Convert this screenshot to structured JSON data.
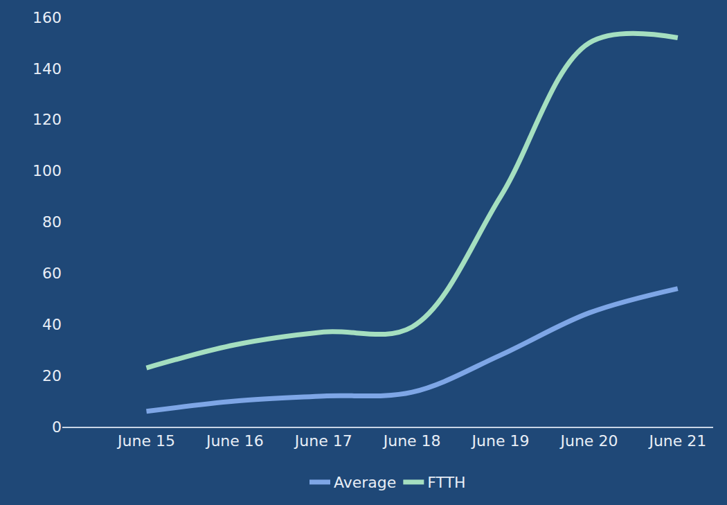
{
  "chart_data": {
    "type": "line",
    "categories": [
      "June 15",
      "June 16",
      "June 17",
      "June 18",
      "June 19",
      "June 20",
      "June 21"
    ],
    "series": [
      {
        "name": "Average",
        "color": "#7ea6e6",
        "values": [
          6,
          10,
          12,
          13.5,
          28,
          44.5,
          54
        ]
      },
      {
        "name": "FTTH",
        "color": "#a5dfc0",
        "values": [
          23,
          32,
          37,
          39,
          90,
          150,
          152
        ]
      }
    ],
    "ylim": [
      0,
      160
    ],
    "yticks": [
      0,
      20,
      40,
      60,
      80,
      100,
      120,
      140,
      160
    ],
    "grid": false,
    "legend": "bottom"
  }
}
